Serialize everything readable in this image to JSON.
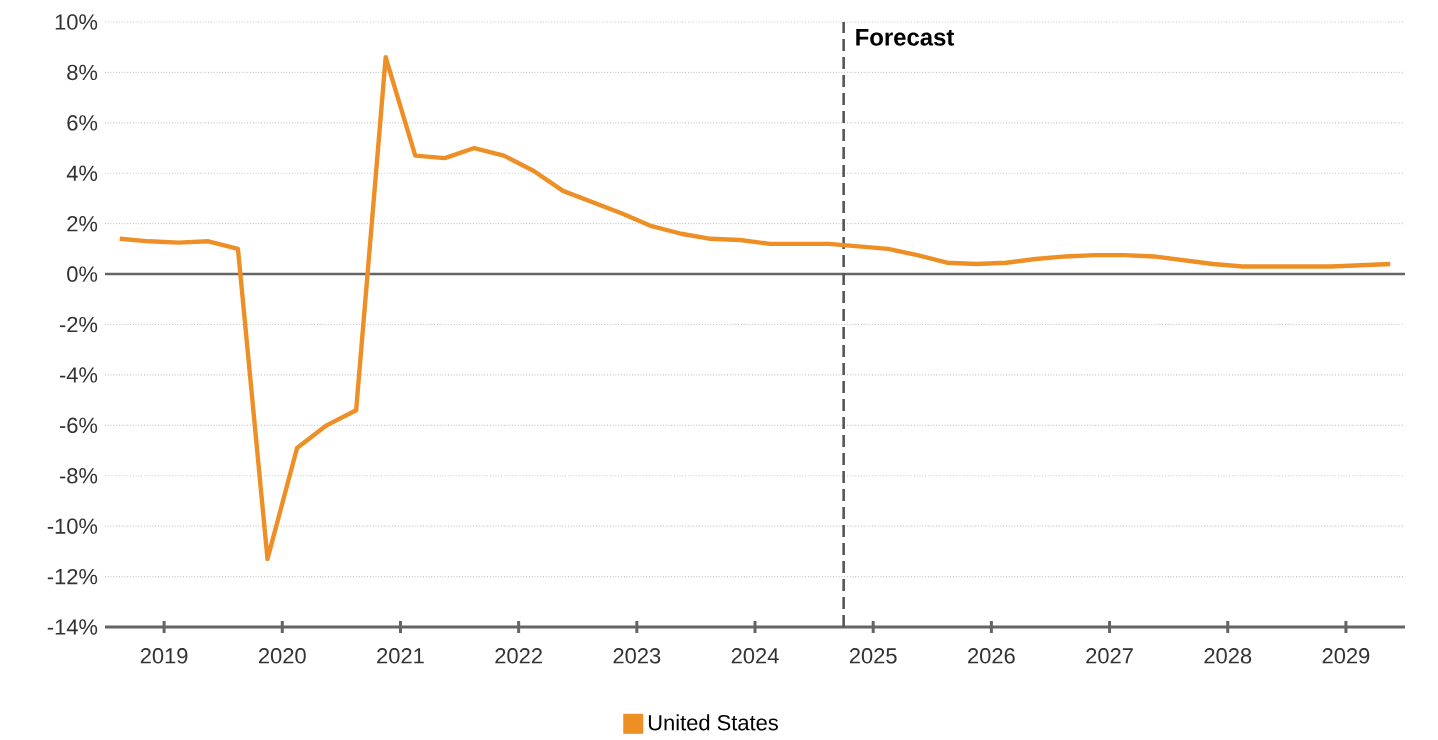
{
  "chart_data": {
    "type": "line",
    "x": [
      2019.125,
      2019.375,
      2019.625,
      2019.875,
      2020.125,
      2020.375,
      2020.625,
      2020.875,
      2021.125,
      2021.375,
      2021.625,
      2021.875,
      2022.125,
      2022.375,
      2022.625,
      2022.875,
      2023.125,
      2023.375,
      2023.625,
      2023.875,
      2024.125,
      2024.375,
      2024.625,
      2024.875,
      2025.125,
      2025.375,
      2025.625,
      2025.875,
      2026.125,
      2026.375,
      2026.625,
      2026.875,
      2027.125,
      2027.375,
      2027.625,
      2027.875,
      2028.125,
      2028.375,
      2028.625,
      2028.875,
      2029.125,
      2029.375,
      2029.625,
      2029.875
    ],
    "series": [
      {
        "name": "United States",
        "color": "#ee8f26",
        "values": [
          1.4,
          1.3,
          1.25,
          1.3,
          1.0,
          -11.3,
          -6.9,
          -6.0,
          -5.4,
          8.6,
          4.7,
          4.6,
          5.0,
          4.7,
          4.1,
          3.3,
          2.85,
          2.4,
          1.9,
          1.6,
          1.4,
          1.35,
          1.2,
          1.2,
          1.2,
          1.1,
          1.0,
          0.75,
          0.45,
          0.4,
          0.45,
          0.6,
          0.7,
          0.75,
          0.75,
          0.7,
          0.55,
          0.4,
          0.3,
          0.3,
          0.3,
          0.3,
          0.35,
          0.4
        ]
      }
    ],
    "xlim": [
      2019,
      2030
    ],
    "xticks": [
      {
        "value": 2019.5,
        "label": "2019"
      },
      {
        "value": 2020.5,
        "label": "2020"
      },
      {
        "value": 2021.5,
        "label": "2021"
      },
      {
        "value": 2022.5,
        "label": "2022"
      },
      {
        "value": 2023.5,
        "label": "2023"
      },
      {
        "value": 2024.5,
        "label": "2024"
      },
      {
        "value": 2025.5,
        "label": "2025"
      },
      {
        "value": 2026.5,
        "label": "2026"
      },
      {
        "value": 2027.5,
        "label": "2027"
      },
      {
        "value": 2028.5,
        "label": "2028"
      },
      {
        "value": 2029.5,
        "label": "2029"
      }
    ],
    "ylim": [
      -14,
      10
    ],
    "yticks": [
      {
        "value": -14,
        "label": "-14%"
      },
      {
        "value": -12,
        "label": "-12%"
      },
      {
        "value": -10,
        "label": "-10%"
      },
      {
        "value": -8,
        "label": "-8%"
      },
      {
        "value": -6,
        "label": "-6%"
      },
      {
        "value": -4,
        "label": "-4%"
      },
      {
        "value": -2,
        "label": "-2%"
      },
      {
        "value": 0,
        "label": "0%"
      },
      {
        "value": 2,
        "label": "2%"
      },
      {
        "value": 4,
        "label": "4%"
      },
      {
        "value": 6,
        "label": "6%"
      },
      {
        "value": 8,
        "label": "8%"
      },
      {
        "value": 10,
        "label": "10%"
      }
    ],
    "ref_lines": [
      {
        "axis": "y",
        "value": 0,
        "color": "#666666",
        "line_style": "solid"
      },
      {
        "axis": "x",
        "value": 2025.25,
        "label": "Forecast",
        "color": "#555555",
        "line_style": "dashed"
      }
    ],
    "grid": "y",
    "legend": "bottom",
    "marker": "none",
    "line_style": "solid"
  }
}
